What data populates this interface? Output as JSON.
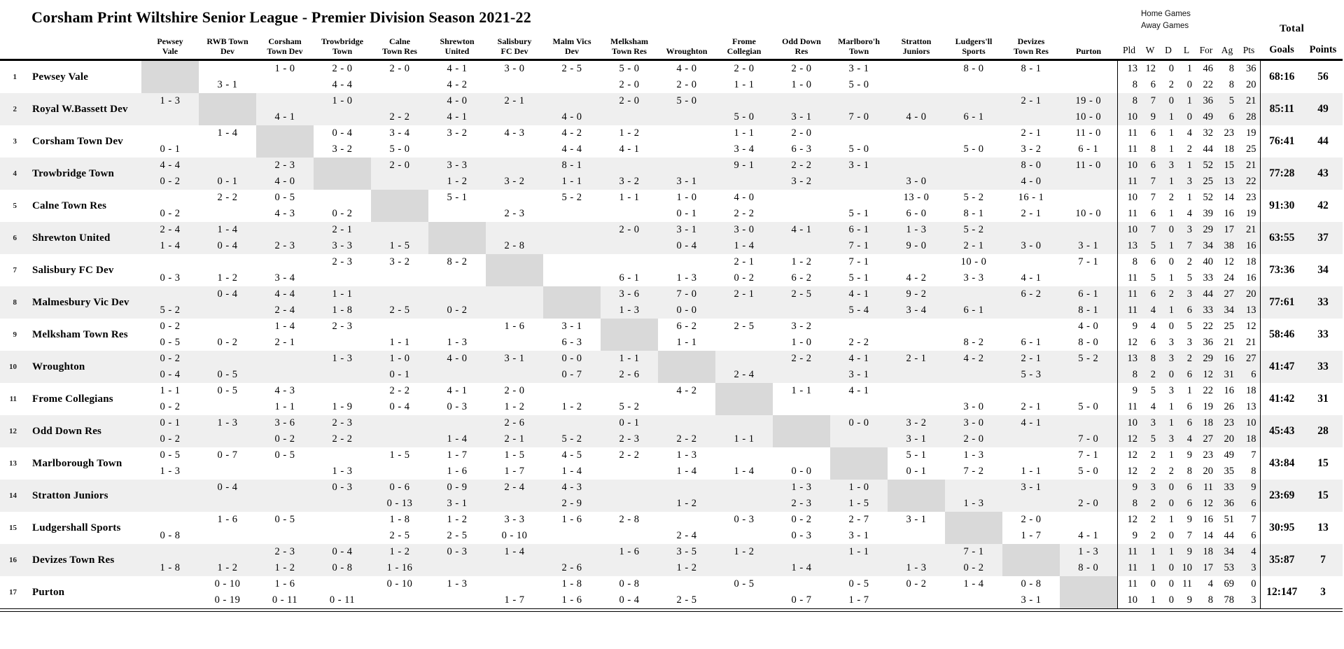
{
  "title": "Corsham Print Wiltshire Senior League - Premier Division Season 2021-22",
  "legend": {
    "home_games": "Home Games",
    "away_games": "Away Games",
    "total": "Total"
  },
  "columns": [
    "Pewsey\nVale",
    "RWB Town\nDev",
    "Corsham\nTown Dev",
    "Trowbridge\nTown",
    "Calne\nTown Res",
    "Shrewton\nUnited",
    "Salisbury\nFC Dev",
    "Malm Vics\nDev",
    "Melksham\nTown Res",
    "Wroughton",
    "Frome\nCollegian",
    "Odd Down\nRes",
    "Marlboro'h\nTown",
    "Stratton\nJuniors",
    "Ludgers'll\nSports",
    "Devizes\nTown Res",
    "Purton"
  ],
  "stat_columns": [
    "Pld",
    "W",
    "D",
    "L",
    "For",
    "Ag",
    "Pts"
  ],
  "total_columns": [
    "Goals",
    "Points"
  ],
  "colors": {
    "stripe": "#efefef",
    "diagonal": "#d9d9d9",
    "text": "#000000"
  },
  "teams": [
    {
      "rank": 1,
      "name": "Pewsey Vale",
      "home": [
        "",
        "",
        "1 - 0",
        "2 - 0",
        "2 - 0",
        "4 - 1",
        "3 - 0",
        "2 - 5",
        "5 - 0",
        "4 - 0",
        "2 - 0",
        "2 - 0",
        "3 - 1",
        "",
        "8 - 0",
        "8 - 1",
        ""
      ],
      "away": [
        "",
        "3 - 1",
        "",
        "4 - 4",
        "",
        "4 - 2",
        "",
        "",
        "2 - 0",
        "2 - 0",
        "1 - 1",
        "1 - 0",
        "5 - 0",
        "",
        "",
        "",
        ""
      ],
      "home_stats": [
        13,
        12,
        0,
        1,
        46,
        8,
        36
      ],
      "away_stats": [
        8,
        6,
        2,
        0,
        22,
        8,
        20
      ],
      "goals": "68:16",
      "points": 56
    },
    {
      "rank": 2,
      "name": "Royal W.Bassett Dev",
      "home": [
        "1 - 3",
        "",
        "",
        "1 - 0",
        "",
        "4 - 0",
        "2 - 1",
        "",
        "2 - 0",
        "5 - 0",
        "",
        "",
        "",
        "",
        "",
        "2 - 1",
        "19 - 0"
      ],
      "away": [
        "",
        "",
        "4 - 1",
        "",
        "2 - 2",
        "4 - 1",
        "",
        "4 - 0",
        "",
        "",
        "5 - 0",
        "3 - 1",
        "7 - 0",
        "4 - 0",
        "6 - 1",
        "",
        "10 - 0"
      ],
      "home_stats": [
        8,
        7,
        0,
        1,
        36,
        5,
        21
      ],
      "away_stats": [
        10,
        9,
        1,
        0,
        49,
        6,
        28
      ],
      "goals": "85:11",
      "points": 49
    },
    {
      "rank": 3,
      "name": "Corsham Town Dev",
      "home": [
        "",
        "1 - 4",
        "",
        "0 - 4",
        "3 - 4",
        "3 - 2",
        "4 - 3",
        "4 - 2",
        "1 - 2",
        "",
        "1 - 1",
        "2 - 0",
        "",
        "",
        "",
        "2 - 1",
        "11 - 0"
      ],
      "away": [
        "0 - 1",
        "",
        "",
        "3 - 2",
        "5 - 0",
        "",
        "",
        "4 - 4",
        "4 - 1",
        "",
        "3 - 4",
        "6 - 3",
        "5 - 0",
        "",
        "5 - 0",
        "3 - 2",
        "6 - 1"
      ],
      "home_stats": [
        11,
        6,
        1,
        4,
        32,
        23,
        19
      ],
      "away_stats": [
        11,
        8,
        1,
        2,
        44,
        18,
        25
      ],
      "goals": "76:41",
      "points": 44
    },
    {
      "rank": 4,
      "name": "Trowbridge Town",
      "home": [
        "4 - 4",
        "",
        "2 - 3",
        "",
        "2 - 0",
        "3 - 3",
        "",
        "8 - 1",
        "",
        "",
        "9 - 1",
        "2 - 2",
        "3 - 1",
        "",
        "",
        "8 - 0",
        "11 - 0"
      ],
      "away": [
        "0 - 2",
        "0 - 1",
        "4 - 0",
        "",
        "",
        "1 - 2",
        "3 - 2",
        "1 - 1",
        "3 - 2",
        "3 - 1",
        "",
        "3 - 2",
        "",
        "3 - 0",
        "",
        "4 - 0",
        ""
      ],
      "home_stats": [
        10,
        6,
        3,
        1,
        52,
        15,
        21
      ],
      "away_stats": [
        11,
        7,
        1,
        3,
        25,
        13,
        22
      ],
      "goals": "77:28",
      "points": 43
    },
    {
      "rank": 5,
      "name": "Calne Town Res",
      "home": [
        "",
        "2 - 2",
        "0 - 5",
        "",
        "",
        "5 - 1",
        "",
        "5 - 2",
        "1 - 1",
        "1 - 0",
        "4 - 0",
        "",
        "",
        "13 - 0",
        "5 - 2",
        "16 - 1",
        ""
      ],
      "away": [
        "0 - 2",
        "",
        "4 - 3",
        "0 - 2",
        "",
        "",
        "2 - 3",
        "",
        "",
        "0 - 1",
        "2 - 2",
        "",
        "5 - 1",
        "6 - 0",
        "8 - 1",
        "2 - 1",
        "10 - 0"
      ],
      "home_stats": [
        10,
        7,
        2,
        1,
        52,
        14,
        23
      ],
      "away_stats": [
        11,
        6,
        1,
        4,
        39,
        16,
        19
      ],
      "goals": "91:30",
      "points": 42
    },
    {
      "rank": 6,
      "name": "Shrewton United",
      "home": [
        "2 - 4",
        "1 - 4",
        "",
        "2 - 1",
        "",
        "",
        "",
        "",
        "2 - 0",
        "3 - 1",
        "3 - 0",
        "4 - 1",
        "6 - 1",
        "1 - 3",
        "5 - 2",
        "",
        ""
      ],
      "away": [
        "1 - 4",
        "0 - 4",
        "2 - 3",
        "3 - 3",
        "1 - 5",
        "",
        "2 - 8",
        "",
        "",
        "0 - 4",
        "1 - 4",
        "",
        "7 - 1",
        "9 - 0",
        "2 - 1",
        "3 - 0",
        "3 - 1"
      ],
      "home_stats": [
        10,
        7,
        0,
        3,
        29,
        17,
        21
      ],
      "away_stats": [
        13,
        5,
        1,
        7,
        34,
        38,
        16
      ],
      "goals": "63:55",
      "points": 37
    },
    {
      "rank": 7,
      "name": "Salisbury FC Dev",
      "home": [
        "",
        "",
        "",
        "2 - 3",
        "3 - 2",
        "8 - 2",
        "",
        "",
        "",
        "",
        "2 - 1",
        "1 - 2",
        "7 - 1",
        "",
        "10 - 0",
        "",
        "7 - 1"
      ],
      "away": [
        "0 - 3",
        "1 - 2",
        "3 - 4",
        "",
        "",
        "",
        "",
        "",
        "6 - 1",
        "1 - 3",
        "0 - 2",
        "6 - 2",
        "5 - 1",
        "4 - 2",
        "3 - 3",
        "4 - 1",
        ""
      ],
      "home_stats": [
        8,
        6,
        0,
        2,
        40,
        12,
        18
      ],
      "away_stats": [
        11,
        5,
        1,
        5,
        33,
        24,
        16
      ],
      "goals": "73:36",
      "points": 34
    },
    {
      "rank": 8,
      "name": "Malmesbury Vic Dev",
      "home": [
        "",
        "0 - 4",
        "4 - 4",
        "1 - 1",
        "",
        "",
        "",
        "",
        "3 - 6",
        "7 - 0",
        "2 - 1",
        "2 - 5",
        "4 - 1",
        "9 - 2",
        "",
        "6 - 2",
        "6 - 1"
      ],
      "away": [
        "5 - 2",
        "",
        "2 - 4",
        "1 - 8",
        "2 - 5",
        "0 - 2",
        "",
        "",
        "1 - 3",
        "0 - 0",
        "",
        "",
        "5 - 4",
        "3 - 4",
        "6 - 1",
        "",
        "8 - 1"
      ],
      "home_stats": [
        11,
        6,
        2,
        3,
        44,
        27,
        20
      ],
      "away_stats": [
        11,
        4,
        1,
        6,
        33,
        34,
        13
      ],
      "goals": "77:61",
      "points": 33
    },
    {
      "rank": 9,
      "name": "Melksham Town Res",
      "home": [
        "0 - 2",
        "",
        "1 - 4",
        "2 - 3",
        "",
        "",
        "1 - 6",
        "3 - 1",
        "",
        "6 - 2",
        "2 - 5",
        "3 - 2",
        "",
        "",
        "",
        "",
        "4 - 0"
      ],
      "away": [
        "0 - 5",
        "0 - 2",
        "2 - 1",
        "",
        "1 - 1",
        "1 - 3",
        "",
        "6 - 3",
        "",
        "1 - 1",
        "",
        "1 - 0",
        "2 - 2",
        "",
        "8 - 2",
        "6 - 1",
        "8 - 0"
      ],
      "home_stats": [
        9,
        4,
        0,
        5,
        22,
        25,
        12
      ],
      "away_stats": [
        12,
        6,
        3,
        3,
        36,
        21,
        21
      ],
      "goals": "58:46",
      "points": 33
    },
    {
      "rank": 10,
      "name": "Wroughton",
      "home": [
        "0 - 2",
        "",
        "",
        "1 - 3",
        "1 - 0",
        "4 - 0",
        "3 - 1",
        "0 - 0",
        "1 - 1",
        "",
        "",
        "2 - 2",
        "4 - 1",
        "2 - 1",
        "4 - 2",
        "2 - 1",
        "5 - 2"
      ],
      "away": [
        "0 - 4",
        "0 - 5",
        "",
        "",
        "0 - 1",
        "",
        "",
        "0 - 7",
        "2 - 6",
        "",
        "2 - 4",
        "",
        "3 - 1",
        "",
        "",
        "5 - 3",
        ""
      ],
      "home_stats": [
        13,
        8,
        3,
        2,
        29,
        16,
        27
      ],
      "away_stats": [
        8,
        2,
        0,
        6,
        12,
        31,
        6
      ],
      "goals": "41:47",
      "points": 33
    },
    {
      "rank": 11,
      "name": "Frome Collegians",
      "home": [
        "1 - 1",
        "0 - 5",
        "4 - 3",
        "",
        "2 - 2",
        "4 - 1",
        "2 - 0",
        "",
        "",
        "4 - 2",
        "",
        "1 - 1",
        "4 - 1",
        "",
        "",
        "",
        ""
      ],
      "away": [
        "0 - 2",
        "",
        "1 - 1",
        "1 - 9",
        "0 - 4",
        "0 - 3",
        "1 - 2",
        "1 - 2",
        "5 - 2",
        "",
        "",
        "",
        "",
        "",
        "3 - 0",
        "2 - 1",
        "5 - 0"
      ],
      "home_stats": [
        9,
        5,
        3,
        1,
        22,
        16,
        18
      ],
      "away_stats": [
        11,
        4,
        1,
        6,
        19,
        26,
        13
      ],
      "goals": "41:42",
      "points": 31
    },
    {
      "rank": 12,
      "name": "Odd Down Res",
      "home": [
        "0 - 1",
        "1 - 3",
        "3 - 6",
        "2 - 3",
        "",
        "",
        "2 - 6",
        "",
        "0 - 1",
        "",
        "",
        "",
        "0 - 0",
        "3 - 2",
        "3 - 0",
        "4 - 1",
        ""
      ],
      "away": [
        "0 - 2",
        "",
        "0 - 2",
        "2 - 2",
        "",
        "1 - 4",
        "2 - 1",
        "5 - 2",
        "2 - 3",
        "2 - 2",
        "1 - 1",
        "",
        "",
        "3 - 1",
        "2 - 0",
        "",
        "7 - 0"
      ],
      "home_stats": [
        10,
        3,
        1,
        6,
        18,
        23,
        10
      ],
      "away_stats": [
        12,
        5,
        3,
        4,
        27,
        20,
        18
      ],
      "goals": "45:43",
      "points": 28
    },
    {
      "rank": 13,
      "name": "Marlborough Town",
      "home": [
        "0 - 5",
        "0 - 7",
        "0 - 5",
        "",
        "1 - 5",
        "1 - 7",
        "1 - 5",
        "4 - 5",
        "2 - 2",
        "1 - 3",
        "",
        "",
        "",
        "5 - 1",
        "1 - 3",
        "",
        "7 - 1"
      ],
      "away": [
        "1 - 3",
        "",
        "",
        "1 - 3",
        "",
        "1 - 6",
        "1 - 7",
        "1 - 4",
        "",
        "1 - 4",
        "1 - 4",
        "0 - 0",
        "",
        "0 - 1",
        "7 - 2",
        "1 - 1",
        "5 - 0"
      ],
      "home_stats": [
        12,
        2,
        1,
        9,
        23,
        49,
        7
      ],
      "away_stats": [
        12,
        2,
        2,
        8,
        20,
        35,
        8
      ],
      "goals": "43:84",
      "points": 15
    },
    {
      "rank": 14,
      "name": "Stratton Juniors",
      "home": [
        "",
        "0 - 4",
        "",
        "0 - 3",
        "0 - 6",
        "0 - 9",
        "2 - 4",
        "4 - 3",
        "",
        "",
        "",
        "1 - 3",
        "1 - 0",
        "",
        "",
        "3 - 1",
        ""
      ],
      "away": [
        "",
        "",
        "",
        "",
        "0 - 13",
        "3 - 1",
        "",
        "2 - 9",
        "",
        "1 - 2",
        "",
        "2 - 3",
        "1 - 5",
        "",
        "1 - 3",
        "",
        "2 - 0"
      ],
      "home_stats": [
        9,
        3,
        0,
        6,
        11,
        33,
        9
      ],
      "away_stats": [
        8,
        2,
        0,
        6,
        12,
        36,
        6
      ],
      "goals": "23:69",
      "points": 15
    },
    {
      "rank": 15,
      "name": "Ludgershall Sports",
      "home": [
        "",
        "1 - 6",
        "0 - 5",
        "",
        "1 - 8",
        "1 - 2",
        "3 - 3",
        "1 - 6",
        "2 - 8",
        "",
        "0 - 3",
        "0 - 2",
        "2 - 7",
        "3 - 1",
        "",
        "2 - 0",
        ""
      ],
      "away": [
        "0 - 8",
        "",
        "",
        "",
        "2 - 5",
        "2 - 5",
        "0 - 10",
        "",
        "",
        "2 - 4",
        "",
        "0 - 3",
        "3 - 1",
        "",
        "",
        "1 - 7",
        "4 - 1"
      ],
      "home_stats": [
        12,
        2,
        1,
        9,
        16,
        51,
        7
      ],
      "away_stats": [
        9,
        2,
        0,
        7,
        14,
        44,
        6
      ],
      "goals": "30:95",
      "points": 13
    },
    {
      "rank": 16,
      "name": "Devizes Town Res",
      "home": [
        "",
        "",
        "2 - 3",
        "0 - 4",
        "1 - 2",
        "0 - 3",
        "1 - 4",
        "",
        "1 - 6",
        "3 - 5",
        "1 - 2",
        "",
        "1 - 1",
        "",
        "7 - 1",
        "",
        "1 - 3"
      ],
      "away": [
        "1 - 8",
        "1 - 2",
        "1 - 2",
        "0 - 8",
        "1 - 16",
        "",
        "",
        "2 - 6",
        "",
        "1 - 2",
        "",
        "1 - 4",
        "",
        "1 - 3",
        "0 - 2",
        "",
        "8 - 0"
      ],
      "home_stats": [
        11,
        1,
        1,
        9,
        18,
        34,
        4
      ],
      "away_stats": [
        11,
        1,
        0,
        10,
        17,
        53,
        3
      ],
      "goals": "35:87",
      "points": 7
    },
    {
      "rank": 17,
      "name": "Purton",
      "home": [
        "",
        "0 - 10",
        "1 - 6",
        "",
        "0 - 10",
        "1 - 3",
        "",
        "1 - 8",
        "0 - 8",
        "",
        "0 - 5",
        "",
        "0 - 5",
        "0 - 2",
        "1 - 4",
        "0 - 8",
        ""
      ],
      "away": [
        "",
        "0 - 19",
        "0 - 11",
        "0 - 11",
        "",
        "",
        "1 - 7",
        "1 - 6",
        "0 - 4",
        "2 - 5",
        "",
        "0 - 7",
        "1 - 7",
        "",
        "",
        "3 - 1",
        ""
      ],
      "home_stats": [
        11,
        0,
        0,
        11,
        4,
        69,
        0
      ],
      "away_stats": [
        10,
        1,
        0,
        9,
        8,
        78,
        3
      ],
      "goals": "12:147",
      "points": 3
    }
  ]
}
